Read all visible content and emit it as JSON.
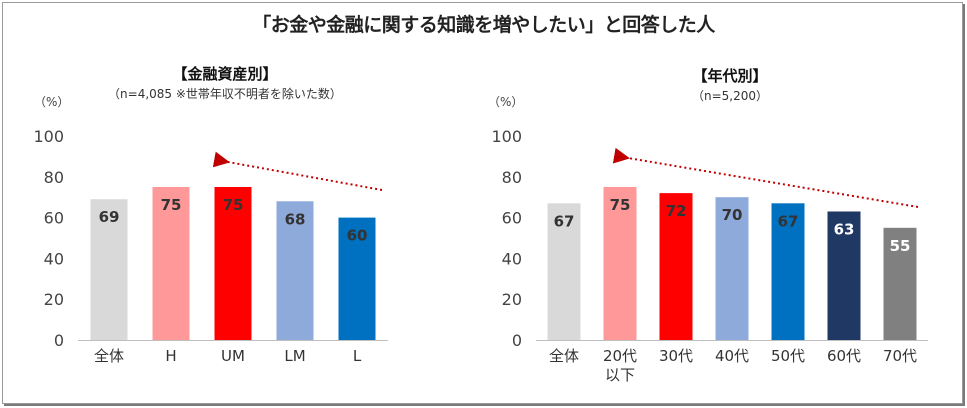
{
  "title": "「お金や金融に関する知識を増やしたい」と回答した人",
  "chart_data": [
    {
      "type": "bar",
      "title": "【金融資産別】",
      "subtitle": "（n=4,085 ※世帯年収不明者を除いた数）",
      "ylabel": "（%）",
      "ylim": [
        0,
        100
      ],
      "yticks": [
        0,
        20,
        40,
        60,
        80,
        100
      ],
      "categories": [
        "全体",
        "H",
        "UM",
        "LM",
        "L"
      ],
      "values": [
        69,
        75,
        75,
        68,
        60
      ],
      "colors": [
        "#d9d9d9",
        "#ff9999",
        "#ff0000",
        "#8eaadb",
        "#0070c0"
      ],
      "label_colors": [
        "#333333",
        "#333333",
        "#333333",
        "#333333",
        "#333333"
      ],
      "trend_arrow": {
        "from": "L",
        "to": "UM",
        "color": "#c00000",
        "style": "dotted"
      }
    },
    {
      "type": "bar",
      "title": "【年代別】",
      "subtitle": "（n=5,200）",
      "ylabel": "（%）",
      "ylim": [
        0,
        100
      ],
      "yticks": [
        0,
        20,
        40,
        60,
        80,
        100
      ],
      "categories": [
        "全体",
        "20代\n以下",
        "30代",
        "40代",
        "50代",
        "60代",
        "70代"
      ],
      "values": [
        67,
        75,
        72,
        70,
        67,
        63,
        55
      ],
      "colors": [
        "#d9d9d9",
        "#ff9999",
        "#ff0000",
        "#8eaadb",
        "#0070c0",
        "#1f3864",
        "#808080"
      ],
      "label_colors": [
        "#333333",
        "#333333",
        "#333333",
        "#333333",
        "#333333",
        "#ffffff",
        "#ffffff"
      ],
      "trend_arrow": {
        "from": "70代",
        "to": "20代\n以下",
        "color": "#c00000",
        "style": "dotted"
      }
    }
  ]
}
